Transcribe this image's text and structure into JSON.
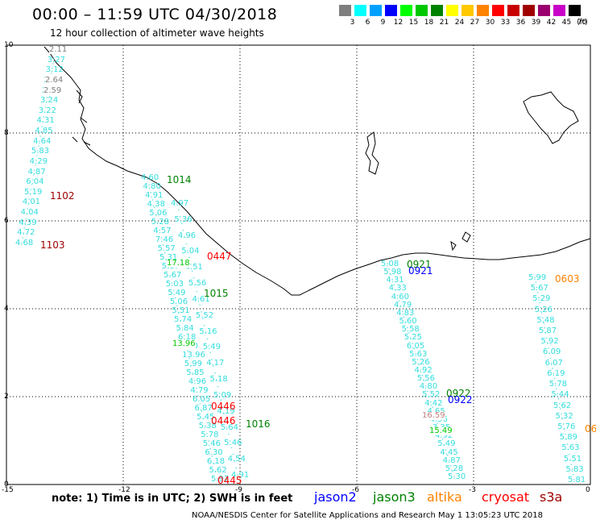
{
  "title": "00:00 – 11:59 UTC 04/30/2018",
  "subtitle": "12 hour collection of altimeter wave heights",
  "legend": {
    "unit_label": "(ft)",
    "bins": [
      {
        "label": "3",
        "color": "#7f7f7f"
      },
      {
        "label": "6",
        "color": "#00ffff"
      },
      {
        "label": "9",
        "color": "#00a0ff"
      },
      {
        "label": "12",
        "color": "#0000ff"
      },
      {
        "label": "15",
        "color": "#00ff00"
      },
      {
        "label": "18",
        "color": "#00c800"
      },
      {
        "label": "21",
        "color": "#008200"
      },
      {
        "label": "24",
        "color": "#ffff00"
      },
      {
        "label": "27",
        "color": "#ffc800"
      },
      {
        "label": "30",
        "color": "#ff8200"
      },
      {
        "label": "33",
        "color": "#ff0000"
      },
      {
        "label": "36",
        "color": "#c80000"
      },
      {
        "label": "39",
        "color": "#a00000"
      },
      {
        "label": "42",
        "color": "#9a006e"
      },
      {
        "label": "45",
        "color": "#c800c8"
      },
      {
        "label": "70",
        "color": "#000000"
      }
    ]
  },
  "axes": {
    "x_ticks": [
      "-15",
      "-12",
      "-9",
      "-6",
      "-3",
      "0"
    ],
    "y_ticks": [
      "0",
      "2",
      "4",
      "6",
      "8",
      "10"
    ]
  },
  "tracks": [
    {
      "color_key": "cyan",
      "values": [
        "2.11",
        "3.27",
        "3.12",
        "2.64",
        "2.59",
        "3.24",
        "3.22",
        "4.31",
        "4.85",
        "4.64",
        "5.83",
        "4.29",
        "4.87",
        "6.04",
        "5.19",
        "4.01",
        "4.04",
        "4.39",
        "4.72",
        "4.68"
      ]
    },
    {
      "color_key": "cyan",
      "values": [
        "4.60",
        "4.80",
        "4.91",
        "4.38",
        "5.06",
        "5.28",
        "4.57",
        "7.46",
        "5.57",
        "5.31",
        "5.17",
        "5.67",
        "5.03",
        "5.49",
        "5.06",
        "5.51",
        "5.74",
        "5.84",
        "6.18",
        "5.10",
        "13.96",
        "5.99",
        "5.85",
        "4.96",
        "4.79",
        "6.05",
        "6.87",
        "5.45",
        "5.38",
        "5.78",
        "5.46",
        "6.30",
        "6.18",
        "5.62",
        "5.97"
      ]
    },
    {
      "color_key": "cyan",
      "values": [
        "4.97",
        "5.36",
        "4.96",
        "5.04",
        "4.51",
        "5.56",
        "4.61",
        "5.52",
        "5.16",
        "5.49",
        "4.17",
        "5.18",
        "5.09",
        "4.19",
        "5.64",
        "5.46",
        "4.54",
        "4.91"
      ]
    },
    {
      "color_key": "cyan",
      "values": [
        "5.08",
        "5.98",
        "4.31",
        "4.33",
        "4.60",
        "4.79",
        "4.83",
        "5.60",
        "5.58",
        "5.25",
        "6.05",
        "5.63",
        "5.26",
        "4.92",
        "5.56",
        "4.80",
        "5.52",
        "4.42",
        "4.65",
        "4.96",
        "3.35",
        "4.92",
        "5.49",
        "4.45",
        "4.87",
        "5.28",
        "5.30"
      ]
    },
    {
      "color_key": "cyan",
      "values": [
        "5.99",
        "5.67",
        "5.29",
        "5.26",
        "5.48",
        "5.87",
        "5.92",
        "6.09",
        "6.07",
        "6.19",
        "5.78",
        "5.44",
        "5.62",
        "5.32",
        "5.76",
        "5.89",
        "5.63",
        "5.51",
        "5.83",
        "5.81"
      ]
    }
  ],
  "pass_labels": [
    {
      "text": "1102",
      "color": "#a00000"
    },
    {
      "text": "1103",
      "color": "#a00000"
    },
    {
      "text": "1014",
      "color": "#008200"
    },
    {
      "text": "0447",
      "color": "#ff0000"
    },
    {
      "text": "1015",
      "color": "#008200"
    },
    {
      "text": "0446",
      "color": "#ff0000"
    },
    {
      "text": "0446",
      "color": "#ff0000"
    },
    {
      "text": "1016",
      "color": "#008200"
    },
    {
      "text": "0445",
      "color": "#ff0000"
    },
    {
      "text": "0921",
      "color": "#008200"
    },
    {
      "text": "0921",
      "color": "#0000ff"
    },
    {
      "text": "0922",
      "color": "#008200"
    },
    {
      "text": "0922",
      "color": "#0000ff"
    },
    {
      "text": "0603",
      "color": "#ff8200"
    },
    {
      "text": "06",
      "color": "#ff8200"
    }
  ],
  "off_color_values": [
    {
      "text": "17.18",
      "color": "#00c800"
    },
    {
      "text": "13.96",
      "color": "#00c800"
    },
    {
      "text": "15.49",
      "color": "#00c800"
    },
    {
      "text": "16.59",
      "color": "#c08080"
    },
    {
      "text": "2.11",
      "color": "#7f7f7f"
    },
    {
      "text": "2.64",
      "color": "#7f7f7f"
    },
    {
      "text": "2.59",
      "color": "#7f7f7f"
    }
  ],
  "footer": {
    "note": "note: 1) Time is in UTC; 2) SWH is in feet",
    "satellites": [
      {
        "name": "jason2",
        "color": "#0000ff"
      },
      {
        "name": "jason3",
        "color": "#008200"
      },
      {
        "name": "altika",
        "color": "#ff8200"
      },
      {
        "name": "cryosat",
        "color": "#ff0000"
      },
      {
        "name": "s3a",
        "color": "#a00000"
      }
    ],
    "credit": "NOAA/NESDIS Center for Satellite Applications and Research      May  1 13:05:23 UTC 2018"
  }
}
